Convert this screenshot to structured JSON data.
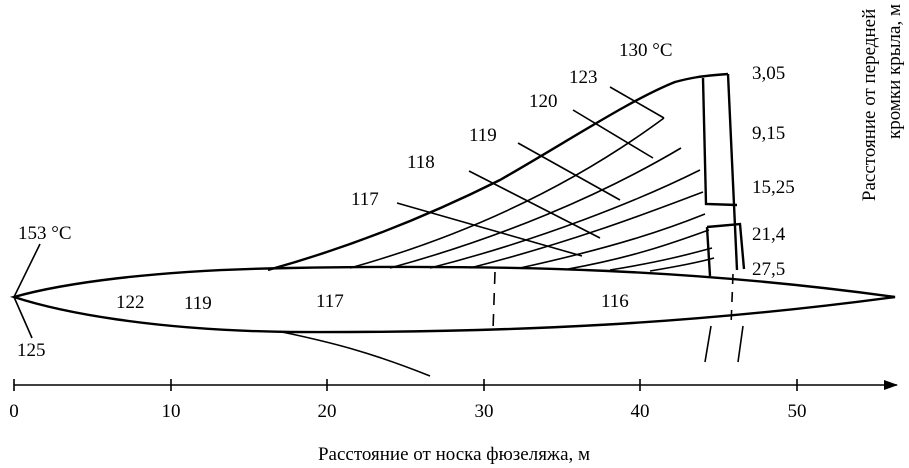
{
  "x_axis": {
    "label": "Расстояние от носка фюзеляжа, м",
    "ticks": [
      "0",
      "10",
      "20",
      "30",
      "40",
      "50"
    ]
  },
  "y_axis_label_lines": [
    "Расстояние от передней",
    "кромки крыла, м"
  ],
  "span_labels": [
    "3,05",
    "9,15",
    "15,25",
    "21,4",
    "27,5"
  ],
  "wing_isotherms": [
    "130 °C",
    "123",
    "120",
    "119",
    "118",
    "117"
  ],
  "fuselage_temperatures": {
    "nose_top": "153 °C",
    "nose_bottom": "125",
    "values": [
      "122",
      "119",
      "117",
      "116"
    ]
  }
}
